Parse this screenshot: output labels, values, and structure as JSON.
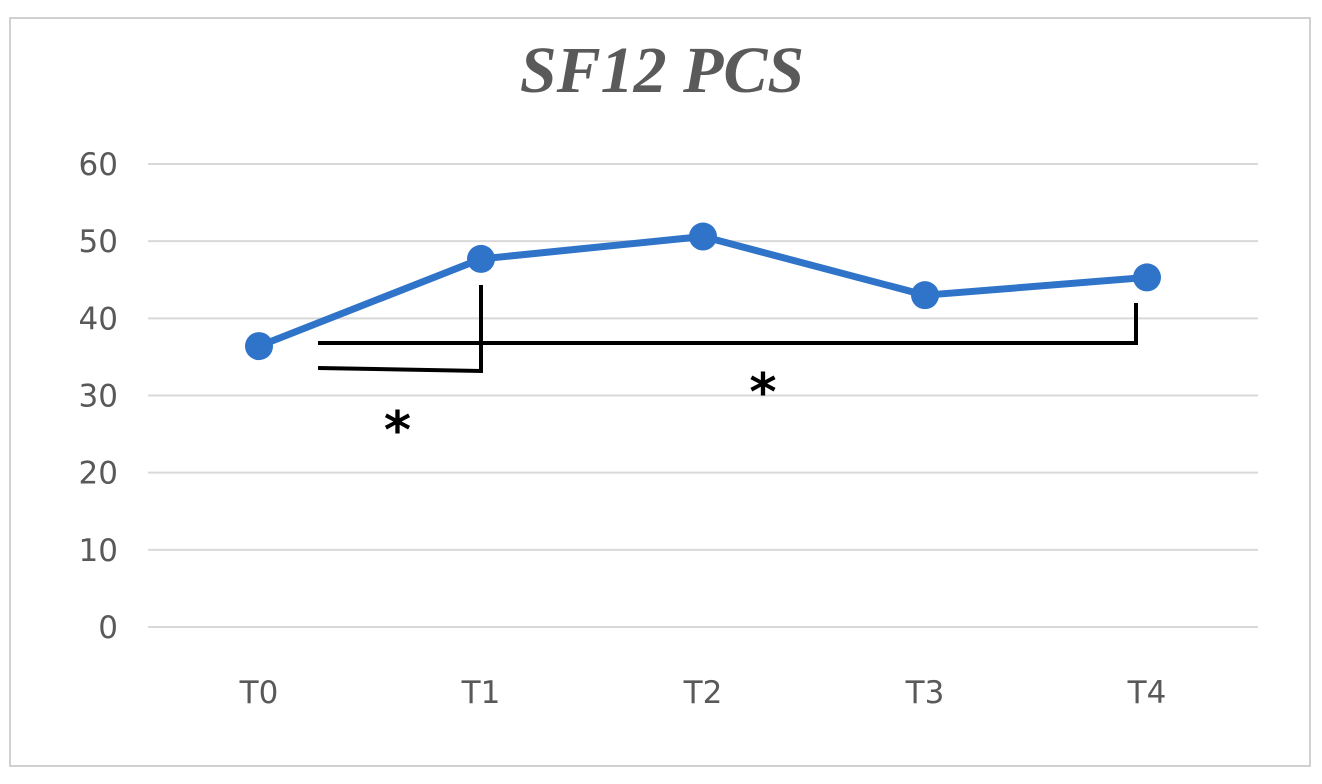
{
  "chart_data": {
    "type": "line",
    "title": "SF12 PCS",
    "xlabel": "",
    "ylabel": "",
    "categories": [
      "T0",
      "T1",
      "T2",
      "T3",
      "T4"
    ],
    "series": [
      {
        "values": [
          36.4,
          47.7,
          50.6,
          43.0,
          45.3
        ]
      }
    ],
    "ylim": [
      0,
      60
    ],
    "yticks": [
      "0",
      "10",
      "20",
      "30",
      "40",
      "50",
      "60"
    ],
    "grid": true,
    "legend": "none",
    "annotations": [
      {
        "text": "*",
        "from": "T0",
        "to": "T1"
      },
      {
        "text": "*",
        "from": "T0",
        "to": "T4"
      }
    ],
    "colors": {
      "line": "#2f74c8",
      "grid": "#d9d9d9",
      "text": "#595959",
      "bracket": "#000000",
      "frame": "#d0d0d0"
    }
  }
}
